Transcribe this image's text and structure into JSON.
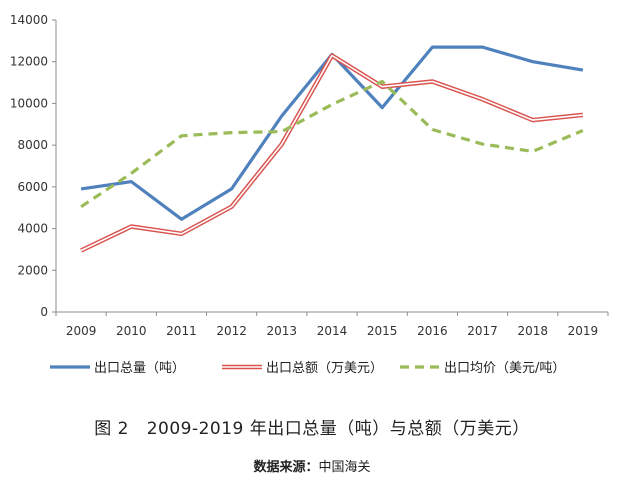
{
  "chart_data": {
    "type": "line",
    "title": "2009-2019 年出口总量（吨）与总额（万美元）",
    "caption_label": "图 2",
    "categories": [
      "2009",
      "2010",
      "2011",
      "2012",
      "2013",
      "2014",
      "2015",
      "2016",
      "2017",
      "2018",
      "2019"
    ],
    "ylim": [
      0,
      14000
    ],
    "yticks": [
      0,
      2000,
      4000,
      6000,
      8000,
      10000,
      12000,
      14000
    ],
    "xlabel": "",
    "ylabel": "",
    "series": [
      {
        "name": "出口总量（吨）",
        "color": "#4f81bd",
        "style": "solid",
        "values": [
          5900,
          6250,
          4450,
          5900,
          9400,
          12350,
          9800,
          12700,
          12700,
          12000,
          11600
        ]
      },
      {
        "name": "出口总额（万美元）",
        "color": "#d9534f",
        "style": "double",
        "values": [
          2950,
          4100,
          3750,
          5050,
          8050,
          12300,
          10800,
          11050,
          10200,
          9200,
          9450
        ]
      },
      {
        "name": "出口均价（美元/吨）",
        "color": "#9bbb59",
        "style": "dashed",
        "values": [
          5050,
          6650,
          8450,
          8600,
          8650,
          9950,
          11050,
          8750,
          8050,
          7700,
          8700
        ]
      }
    ],
    "legend_position": "bottom"
  },
  "source": {
    "label": "数据来源：",
    "value": "中国海关"
  }
}
